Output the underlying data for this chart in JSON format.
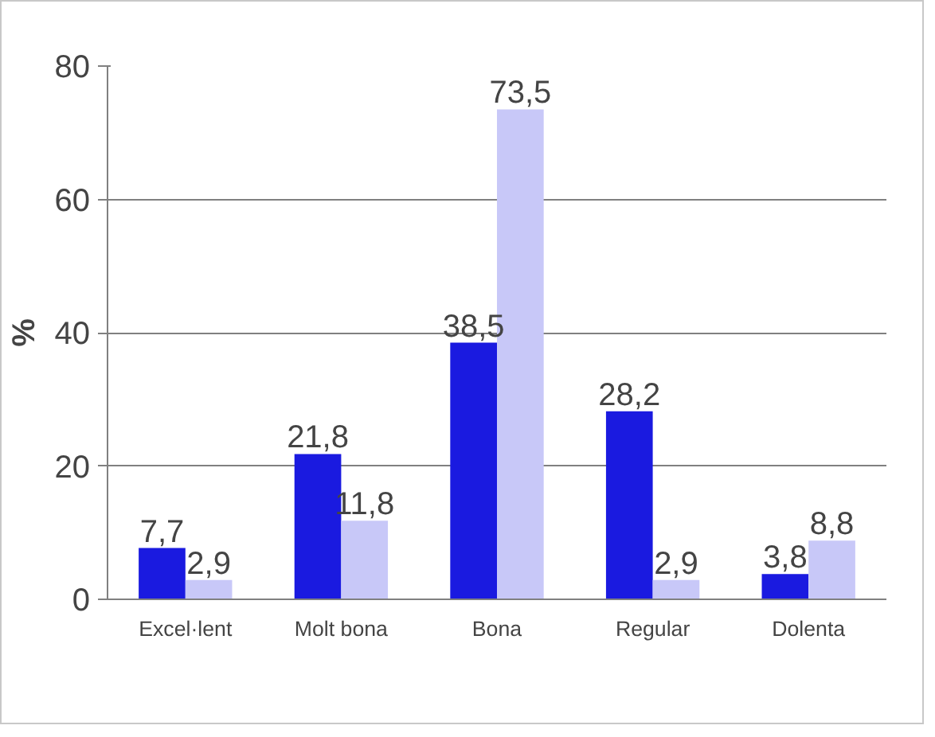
{
  "chart_data": {
    "type": "bar",
    "ylabel": "%",
    "categories": [
      "Excel·lent",
      "Molt bona",
      "Bona",
      "Regular",
      "Dolenta"
    ],
    "series": [
      {
        "color": "#1a1ae0",
        "values": [
          7.7,
          21.8,
          38.5,
          28.2,
          3.8
        ],
        "value_labels": [
          "7,7",
          "21,8",
          "38,5",
          "28,2",
          "3,8"
        ]
      },
      {
        "color": "#c8c8f8",
        "values": [
          2.9,
          11.8,
          73.5,
          2.9,
          8.8
        ],
        "value_labels": [
          "2,9",
          "11,8",
          "73,5",
          "2,9",
          "8,8"
        ]
      }
    ],
    "ylim": [
      0,
      80
    ],
    "yticks": [
      0,
      20,
      40,
      60,
      80
    ],
    "grid": "y"
  }
}
